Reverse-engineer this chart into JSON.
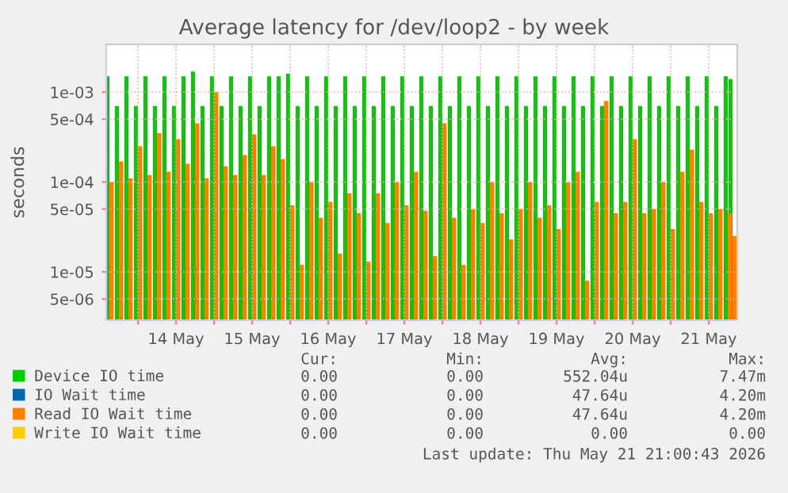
{
  "chart_data": {
    "type": "bar",
    "title": "Average latency for /dev/loop2 - by week",
    "ylabel": "seconds",
    "log": "y",
    "grid": true,
    "legend": "bottom",
    "ylim": [
      2.9e-06,
      0.0034
    ],
    "yticks": [
      {
        "value": 5e-06,
        "label": "5e-06"
      },
      {
        "value": 1e-05,
        "label": "1e-05"
      },
      {
        "value": 5e-05,
        "label": "5e-05"
      },
      {
        "value": 0.0001,
        "label": "1e-04"
      },
      {
        "value": 0.0005,
        "label": "5e-04"
      },
      {
        "value": 0.001,
        "label": "1e-03"
      }
    ],
    "xlim": [
      "2026-05-13T14:00",
      "2026-05-21T21:00"
    ],
    "xticks": [
      {
        "value": "2026-05-14T00:00",
        "label": null
      },
      {
        "value": "2026-05-14T12:00",
        "label": "14 May"
      },
      {
        "value": "2026-05-15T00:00",
        "label": null
      },
      {
        "value": "2026-05-15T12:00",
        "label": "15 May"
      },
      {
        "value": "2026-05-16T00:00",
        "label": null
      },
      {
        "value": "2026-05-16T12:00",
        "label": "16 May"
      },
      {
        "value": "2026-05-17T00:00",
        "label": null
      },
      {
        "value": "2026-05-17T12:00",
        "label": "17 May"
      },
      {
        "value": "2026-05-18T00:00",
        "label": null
      },
      {
        "value": "2026-05-18T12:00",
        "label": "18 May"
      },
      {
        "value": "2026-05-19T00:00",
        "label": null
      },
      {
        "value": "2026-05-19T12:00",
        "label": "19 May"
      },
      {
        "value": "2026-05-20T00:00",
        "label": null
      },
      {
        "value": "2026-05-20T12:00",
        "label": "20 May"
      },
      {
        "value": "2026-05-21T00:00",
        "label": null
      },
      {
        "value": "2026-05-21T12:00",
        "label": "21 May"
      }
    ],
    "x": [
      "2026-05-13T15:00",
      "2026-05-13T18:00",
      "2026-05-13T21:00",
      "2026-05-14T00:00",
      "2026-05-14T03:00",
      "2026-05-14T06:00",
      "2026-05-14T09:00",
      "2026-05-14T12:00",
      "2026-05-14T15:00",
      "2026-05-14T18:00",
      "2026-05-14T21:00",
      "2026-05-15T00:00",
      "2026-05-15T03:00",
      "2026-05-15T06:00",
      "2026-05-15T09:00",
      "2026-05-15T12:00",
      "2026-05-15T15:00",
      "2026-05-15T18:00",
      "2026-05-15T21:00",
      "2026-05-16T00:00",
      "2026-05-16T03:00",
      "2026-05-16T06:00",
      "2026-05-16T09:00",
      "2026-05-16T12:00",
      "2026-05-16T15:00",
      "2026-05-16T18:00",
      "2026-05-16T21:00",
      "2026-05-17T00:00",
      "2026-05-17T03:00",
      "2026-05-17T06:00",
      "2026-05-17T09:00",
      "2026-05-17T12:00",
      "2026-05-17T15:00",
      "2026-05-17T18:00",
      "2026-05-17T21:00",
      "2026-05-18T00:00",
      "2026-05-18T03:00",
      "2026-05-18T06:00",
      "2026-05-18T09:00",
      "2026-05-18T12:00",
      "2026-05-18T15:00",
      "2026-05-18T18:00",
      "2026-05-18T21:00",
      "2026-05-19T00:00",
      "2026-05-19T03:00",
      "2026-05-19T06:00",
      "2026-05-19T09:00",
      "2026-05-19T12:00",
      "2026-05-19T15:00",
      "2026-05-19T18:00",
      "2026-05-19T21:00",
      "2026-05-20T00:00",
      "2026-05-20T03:00",
      "2026-05-20T06:00",
      "2026-05-20T09:00",
      "2026-05-20T12:00",
      "2026-05-20T15:00",
      "2026-05-20T18:00",
      "2026-05-20T21:00",
      "2026-05-21T00:00",
      "2026-05-21T03:00",
      "2026-05-21T06:00",
      "2026-05-21T09:00",
      "2026-05-21T12:00",
      "2026-05-21T15:00",
      "2026-05-21T18:00",
      "2026-05-21T19:30"
    ],
    "series": [
      {
        "name": "Device IO time",
        "color": "#00cc00",
        "values": [
          0.0015,
          0.0007,
          0.0015,
          0.0007,
          0.0015,
          0.0007,
          0.0015,
          0.0007,
          0.0015,
          0.0017,
          0.0007,
          0.0015,
          0.0007,
          0.0015,
          0.0007,
          0.0015,
          0.0007,
          0.0015,
          0.0015,
          0.0016,
          0.0007,
          0.0015,
          0.0007,
          0.0015,
          0.0007,
          0.0015,
          0.0007,
          0.0015,
          0.0007,
          0.0015,
          0.0007,
          0.0015,
          0.0007,
          0.0015,
          0.0007,
          0.0015,
          0.0007,
          0.0015,
          0.0007,
          0.0015,
          0.0007,
          0.0015,
          0.0007,
          0.0015,
          0.0007,
          0.0015,
          0.0007,
          0.0015,
          0.0007,
          0.0015,
          0.0007,
          0.0015,
          0.0007,
          0.0015,
          0.0007,
          0.0015,
          0.0007,
          0.0015,
          0.0007,
          0.0015,
          0.0007,
          0.0015,
          0.0007,
          0.0015,
          0.0007,
          0.0015,
          0.0014
        ]
      },
      {
        "name": "IO Wait time",
        "color": "#0066b3",
        "values": [
          null,
          null,
          null,
          null,
          null,
          null,
          null,
          null,
          null,
          null,
          null,
          null,
          null,
          null,
          null,
          null,
          null,
          null,
          null,
          null,
          null,
          null,
          null,
          null,
          null,
          null,
          null,
          null,
          null,
          null,
          null,
          null,
          null,
          null,
          null,
          null,
          null,
          null,
          null,
          null,
          null,
          null,
          null,
          null,
          null,
          null,
          null,
          null,
          null,
          null,
          null,
          null,
          null,
          null,
          null,
          null,
          null,
          null,
          null,
          null,
          null,
          null,
          null,
          null,
          null,
          null,
          null
        ]
      },
      {
        "name": "Read IO Wait time",
        "color": "#ff8000",
        "values": [
          0.0001,
          0.00017,
          0.00011,
          0.00025,
          0.00012,
          0.00035,
          0.00013,
          0.0003,
          0.00016,
          0.00045,
          0.00011,
          0.001,
          0.00015,
          0.00012,
          0.0002,
          0.00034,
          0.00012,
          0.00025,
          0.00018,
          5.5e-05,
          1.2e-05,
          0.0001,
          4e-05,
          6e-05,
          1.6e-05,
          7.5e-05,
          4.5e-05,
          1.3e-05,
          7.5e-05,
          3.5e-05,
          0.0001,
          5.5e-05,
          0.00013,
          4.8e-05,
          1.5e-05,
          0.00045,
          4e-05,
          1.2e-05,
          5e-05,
          3.5e-05,
          0.0001,
          4.5e-05,
          2.3e-05,
          5e-05,
          0.0001,
          4e-05,
          5.5e-05,
          3e-05,
          0.0001,
          0.00013,
          8e-06,
          6e-05,
          0.0008,
          4.5e-05,
          6e-05,
          0.0003,
          4.5e-05,
          5e-05,
          0.0001,
          3e-05,
          0.00013,
          0.00023,
          6e-05,
          4.5e-05,
          5e-05,
          4.5e-05,
          2.5e-05
        ]
      },
      {
        "name": "Write IO Wait time",
        "color": "#ffcc00",
        "values": [
          null,
          null,
          null,
          null,
          null,
          null,
          null,
          null,
          null,
          null,
          null,
          null,
          null,
          null,
          null,
          null,
          null,
          null,
          null,
          null,
          null,
          null,
          null,
          null,
          null,
          null,
          null,
          null,
          null,
          null,
          null,
          null,
          null,
          null,
          null,
          null,
          null,
          null,
          null,
          null,
          null,
          null,
          null,
          null,
          null,
          null,
          null,
          null,
          null,
          null,
          null,
          null,
          null,
          null,
          null,
          null,
          null,
          null,
          null,
          null,
          null,
          null,
          null,
          null,
          null,
          null,
          null
        ]
      }
    ],
    "annotations": [
      "Cur:",
      "Min:",
      "Avg:",
      "Max:",
      "0.00",
      "0.00",
      "552.04u",
      "7.47m",
      "0.00",
      "0.00",
      "47.64u",
      "4.20m",
      "0.00",
      "0.00",
      "47.64u",
      "4.20m",
      "0.00",
      "0.00",
      "0.00",
      "0.00",
      "Last update: Thu May 21 21:00:43 2026"
    ]
  }
}
